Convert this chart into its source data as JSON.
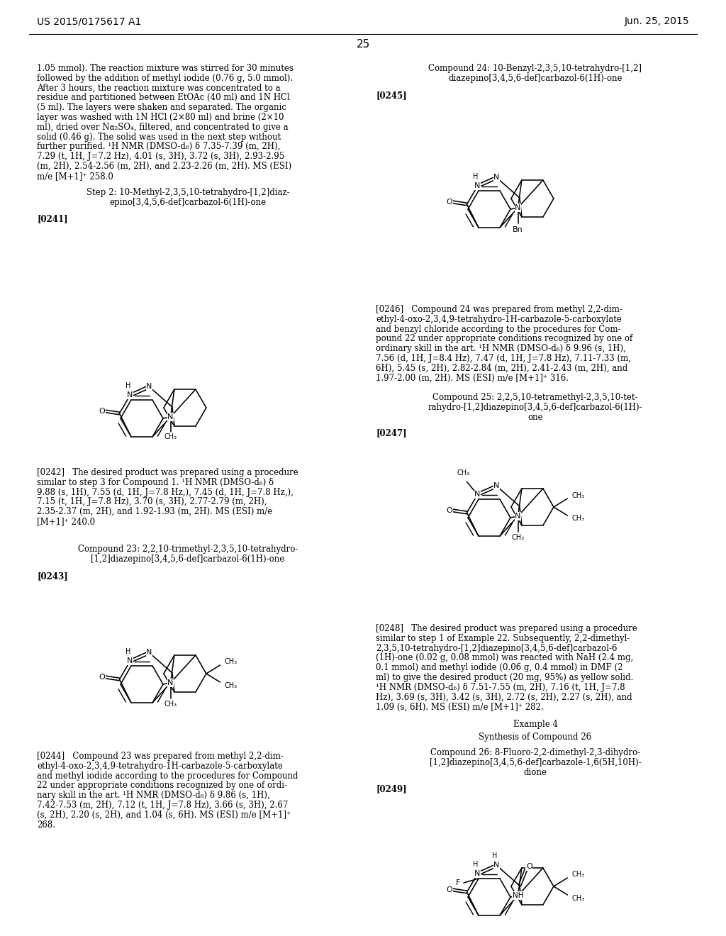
{
  "bg": "#ffffff",
  "header_left": "US 2015/0175617 A1",
  "header_right": "Jun. 25, 2015",
  "page_num": "25"
}
